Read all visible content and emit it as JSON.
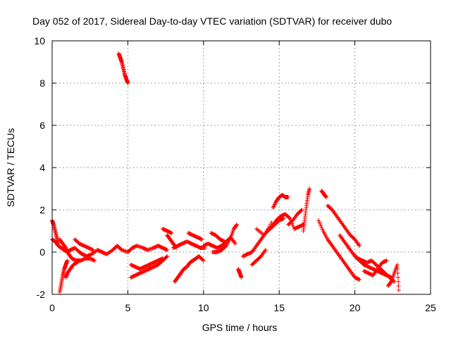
{
  "chart_data": {
    "type": "scatter",
    "title": "Day 052 of 2017, Sidereal Day-to-day VTEC variation (SDTVAR) for receiver dubo",
    "xlabel": "GPS time / hours",
    "ylabel": "SDTVAR / TECUs",
    "xlim": [
      0,
      25
    ],
    "ylim": [
      -2,
      10
    ],
    "xticks": [
      0,
      5,
      10,
      15,
      20,
      25
    ],
    "yticks": [
      -2,
      0,
      2,
      4,
      6,
      8,
      10
    ],
    "grid": true,
    "marker": "+",
    "series": [
      {
        "name": "SDTVAR",
        "color": "#ff0000",
        "tracks": [
          {
            "x": [
              0.0,
              0.2,
              0.4,
              0.6,
              0.8,
              1.0,
              1.2,
              1.5,
              1.8,
              2.0,
              2.3,
              2.6,
              3.0,
              3.3,
              3.6,
              4.0,
              4.3,
              4.6,
              5.0,
              5.3,
              5.6,
              6.0,
              6.3,
              6.7,
              7.0,
              7.3,
              7.6
            ],
            "y": [
              0.6,
              0.5,
              0.3,
              0.2,
              0.1,
              0.0,
              0.1,
              0.2,
              0.0,
              -0.1,
              -0.2,
              -0.1,
              0.1,
              0.0,
              -0.1,
              0.1,
              0.3,
              0.1,
              0.0,
              0.2,
              0.3,
              0.2,
              0.1,
              0.2,
              0.3,
              0.2,
              0.1
            ]
          },
          {
            "x": [
              0.0,
              0.1,
              0.2,
              0.3,
              0.4
            ],
            "y": [
              1.5,
              1.3,
              1.0,
              0.7,
              0.4
            ]
          },
          {
            "x": [
              0.5,
              0.6,
              0.7,
              0.8,
              0.9,
              1.0
            ],
            "y": [
              -1.9,
              -1.5,
              -1.1,
              -0.8,
              -0.6,
              -0.4
            ]
          },
          {
            "x": [
              0.5,
              0.7,
              0.9,
              1.1,
              1.3,
              1.6,
              1.9,
              2.2,
              2.5,
              2.8
            ],
            "y": [
              0.6,
              0.4,
              0.2,
              -0.1,
              -0.3,
              -0.4,
              -0.4,
              -0.3,
              -0.3,
              -0.4
            ]
          },
          {
            "x": [
              0.9,
              1.0,
              1.2,
              1.4,
              1.6,
              1.8
            ],
            "y": [
              -1.2,
              -1.0,
              -0.8,
              -0.6,
              -0.5,
              -0.4
            ]
          },
          {
            "x": [
              1.5,
              1.8,
              2.1,
              2.4,
              2.7
            ],
            "y": [
              0.6,
              0.4,
              0.3,
              0.2,
              0.1
            ]
          },
          {
            "x": [
              4.4,
              4.5,
              4.6,
              4.7,
              4.8,
              4.9,
              5.0
            ],
            "y": [
              9.4,
              9.2,
              9.0,
              8.7,
              8.4,
              8.2,
              8.0
            ]
          },
          {
            "x": [
              5.2,
              5.5,
              5.8,
              6.1,
              6.4,
              6.7,
              7.0,
              7.3,
              7.6
            ],
            "y": [
              -1.2,
              -1.1,
              -1.0,
              -0.9,
              -0.8,
              -0.7,
              -0.6,
              -0.4,
              -0.2
            ]
          },
          {
            "x": [
              5.2,
              5.5,
              5.8,
              6.1,
              6.4,
              6.7,
              7.0,
              7.3
            ],
            "y": [
              -0.6,
              -0.7,
              -0.8,
              -0.7,
              -0.6,
              -0.5,
              -0.4,
              -0.3
            ]
          },
          {
            "x": [
              7.3,
              7.6,
              7.9
            ],
            "y": [
              1.1,
              1.0,
              0.9
            ]
          },
          {
            "x": [
              7.6,
              7.8,
              8.0,
              8.2
            ],
            "y": [
              0.8,
              0.6,
              0.4,
              0.2
            ]
          },
          {
            "x": [
              8.0,
              8.3,
              8.6,
              8.9,
              9.2,
              9.5,
              9.8,
              10.1
            ],
            "y": [
              0.2,
              0.3,
              0.4,
              0.5,
              0.4,
              0.3,
              0.2,
              0.2
            ]
          },
          {
            "x": [
              8.1,
              8.3,
              8.5,
              8.7,
              8.9,
              9.1,
              9.3,
              9.5,
              9.7,
              10.0
            ],
            "y": [
              -1.4,
              -1.2,
              -1.0,
              -0.8,
              -0.7,
              -0.5,
              -0.4,
              -0.3,
              -0.2,
              -0.4
            ]
          },
          {
            "x": [
              9.0,
              9.3,
              9.6,
              9.9
            ],
            "y": [
              0.9,
              0.8,
              0.7,
              0.6
            ]
          },
          {
            "x": [
              10.0,
              10.3,
              10.6,
              10.9,
              11.2,
              11.5,
              11.8,
              12.1
            ],
            "y": [
              0.3,
              0.4,
              0.3,
              0.2,
              0.3,
              0.5,
              0.7,
              0.4
            ]
          },
          {
            "x": [
              10.6,
              10.9,
              11.2,
              11.5,
              11.8,
              12.0,
              12.2
            ],
            "y": [
              0.0,
              0.0,
              0.1,
              0.3,
              0.7,
              1.1,
              1.3
            ]
          },
          {
            "x": [
              10.5,
              10.8,
              11.1,
              11.4
            ],
            "y": [
              0.9,
              0.8,
              0.6,
              0.5
            ]
          },
          {
            "x": [
              12.3,
              12.4,
              12.5
            ],
            "y": [
              -0.8,
              -1.0,
              -1.2
            ]
          },
          {
            "x": [
              12.6,
              12.9,
              13.2,
              13.5,
              13.8,
              14.1,
              14.4,
              14.7,
              15.0,
              15.3
            ],
            "y": [
              -0.2,
              -0.1,
              0.0,
              0.3,
              0.6,
              0.9,
              1.1,
              1.3,
              1.5,
              1.6
            ]
          },
          {
            "x": [
              13.2,
              13.5,
              13.8,
              14.1
            ],
            "y": [
              -0.6,
              -0.4,
              -0.2,
              0.1
            ]
          },
          {
            "x": [
              13.5,
              14.0,
              14.5
            ],
            "y": [
              1.1,
              0.8,
              1.4
            ]
          },
          {
            "x": [
              14.2,
              14.5,
              14.8,
              15.1,
              15.4,
              15.7,
              16.0,
              16.3,
              16.6
            ],
            "y": [
              1.0,
              1.2,
              1.5,
              1.7,
              1.8,
              1.6,
              1.1,
              1.2,
              1.3
            ]
          },
          {
            "x": [
              14.6,
              14.8,
              15.0,
              15.2,
              15.4,
              15.6
            ],
            "y": [
              2.1,
              2.4,
              2.6,
              2.7,
              2.6,
              2.6
            ]
          },
          {
            "x": [
              15.6,
              15.9,
              16.2,
              16.5
            ],
            "y": [
              1.3,
              1.5,
              1.8,
              2.0
            ]
          },
          {
            "x": [
              16.6,
              16.7,
              16.8,
              16.9,
              17.0
            ],
            "y": [
              1.0,
              1.6,
              2.2,
              2.7,
              3.0
            ]
          },
          {
            "x": [
              17.8,
              17.9,
              18.0,
              18.1
            ],
            "y": [
              2.9,
              2.8,
              2.7,
              2.6
            ]
          },
          {
            "x": [
              17.6,
              17.9,
              18.2,
              18.5,
              18.8,
              19.1,
              19.4,
              19.7,
              20.0,
              20.3
            ],
            "y": [
              1.5,
              1.0,
              0.6,
              0.3,
              0.0,
              -0.3,
              -0.6,
              -0.9,
              -1.2,
              -1.3
            ]
          },
          {
            "x": [
              18.2,
              18.5,
              18.8,
              19.1,
              19.4,
              19.7,
              20.0,
              20.3
            ],
            "y": [
              2.2,
              2.0,
              1.7,
              1.4,
              1.1,
              0.8,
              0.6,
              0.3
            ]
          },
          {
            "x": [
              19.0,
              19.3,
              19.6,
              19.9,
              20.2,
              20.5,
              20.8,
              21.1,
              21.4,
              21.7,
              22.0,
              22.3,
              22.6
            ],
            "y": [
              0.8,
              0.5,
              0.2,
              -0.1,
              -0.3,
              -0.4,
              -0.5,
              -0.4,
              -0.6,
              -0.8,
              -1.0,
              -1.2,
              -1.4
            ]
          },
          {
            "x": [
              20.0,
              20.3,
              20.6,
              20.9,
              21.2,
              21.5,
              21.8,
              22.1,
              22.4
            ],
            "y": [
              -0.2,
              -0.4,
              -0.6,
              -0.7,
              -0.8,
              -0.9,
              -1.0,
              -1.1,
              -1.2
            ]
          },
          {
            "x": [
              20.6,
              20.9,
              21.2,
              21.5,
              21.8,
              22.1
            ],
            "y": [
              -0.9,
              -1.0,
              -1.1,
              -0.8,
              -0.5,
              -0.4
            ]
          },
          {
            "x": [
              22.2,
              22.4,
              22.6,
              22.8,
              22.9
            ],
            "y": [
              -1.6,
              -1.4,
              -1.0,
              -0.6,
              -1.8
            ]
          }
        ]
      }
    ]
  }
}
